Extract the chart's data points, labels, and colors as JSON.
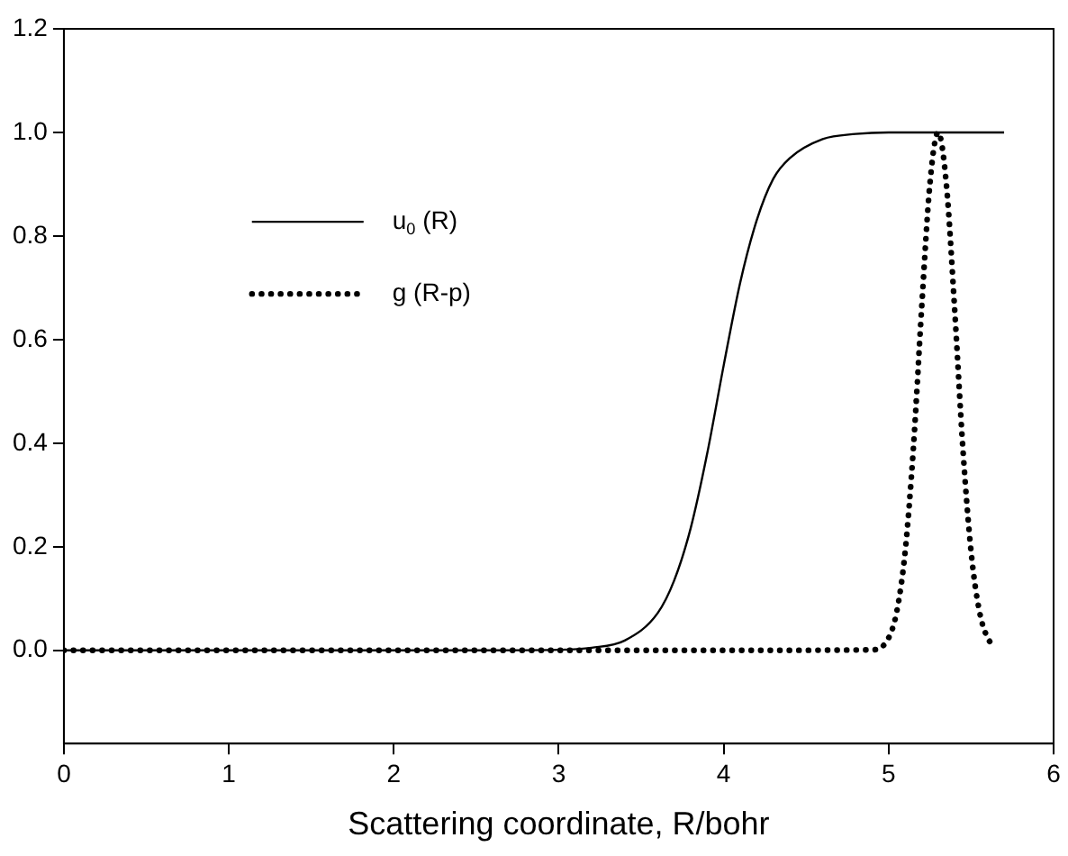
{
  "chart_data": {
    "type": "line",
    "xlabel": "Scattering coordinate, R/bohr",
    "xlim": [
      0,
      6
    ],
    "xticks": [
      0,
      1,
      2,
      3,
      4,
      5,
      6
    ],
    "ylim": [
      -0.18,
      1.2
    ],
    "yticks": [
      {
        "value": 0,
        "label": "0.0"
      },
      {
        "value": 0.2,
        "label": "0.2"
      },
      {
        "value": 0.4,
        "label": "0.4"
      },
      {
        "value": 0.6,
        "label": "0.6"
      },
      {
        "value": 0.8,
        "label": "0.8"
      },
      {
        "value": 1,
        "label": "1.0"
      },
      {
        "value": 1.2,
        "label": "1.2"
      }
    ],
    "grid": false,
    "legend": "left",
    "marker": "none",
    "series": [
      {
        "name": "u$_{0}$ (R)",
        "color": "#000000",
        "line_style": "solid",
        "x": [
          0,
          0.5,
          1,
          1.5,
          2,
          2.5,
          3,
          3.2,
          3.4,
          3.6,
          3.7,
          3.8,
          3.9,
          4.0,
          4.1,
          4.2,
          4.3,
          4.4,
          4.6,
          4.8,
          5.0,
          5.2,
          5.7
        ],
        "values": [
          0,
          0,
          0,
          0,
          0,
          0,
          0.001,
          0.005,
          0.019,
          0.072,
          0.135,
          0.236,
          0.38,
          0.55,
          0.71,
          0.83,
          0.91,
          0.95,
          0.987,
          0.997,
          1,
          1,
          1
        ]
      },
      {
        "name": "g (R-p)",
        "color": "#000000",
        "line_style": "dotted",
        "x": [
          0,
          1,
          2,
          3,
          4,
          4.9,
          5.0,
          5.05,
          5.1,
          5.15,
          5.2,
          5.25,
          5.3,
          5.35,
          5.4,
          5.45,
          5.5,
          5.55,
          5.6,
          5.65
        ],
        "values": [
          0,
          0,
          0,
          0,
          0,
          0.001,
          0.024,
          0.076,
          0.19,
          0.39,
          0.66,
          0.9,
          1,
          0.9,
          0.66,
          0.39,
          0.19,
          0.076,
          0.024,
          0.006
        ]
      }
    ]
  }
}
